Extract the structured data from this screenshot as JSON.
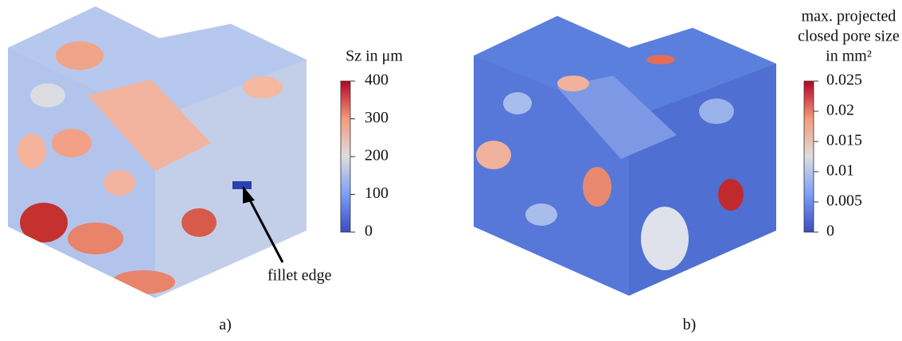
{
  "panels": [
    {
      "caption": "a)",
      "colorbar": {
        "title": [
          "Sz in μm"
        ],
        "lim": [
          0,
          400
        ],
        "ticks": [
          0,
          100,
          200,
          300,
          400
        ]
      },
      "annotation": "fillet edge"
    },
    {
      "caption": "b)",
      "colorbar": {
        "title": [
          "max. projected",
          "closed pore size",
          "in mm²"
        ],
        "lim": [
          0,
          0.025
        ],
        "ticks": [
          0,
          0.005,
          0.01,
          0.015,
          0.02,
          0.025
        ]
      }
    }
  ]
}
